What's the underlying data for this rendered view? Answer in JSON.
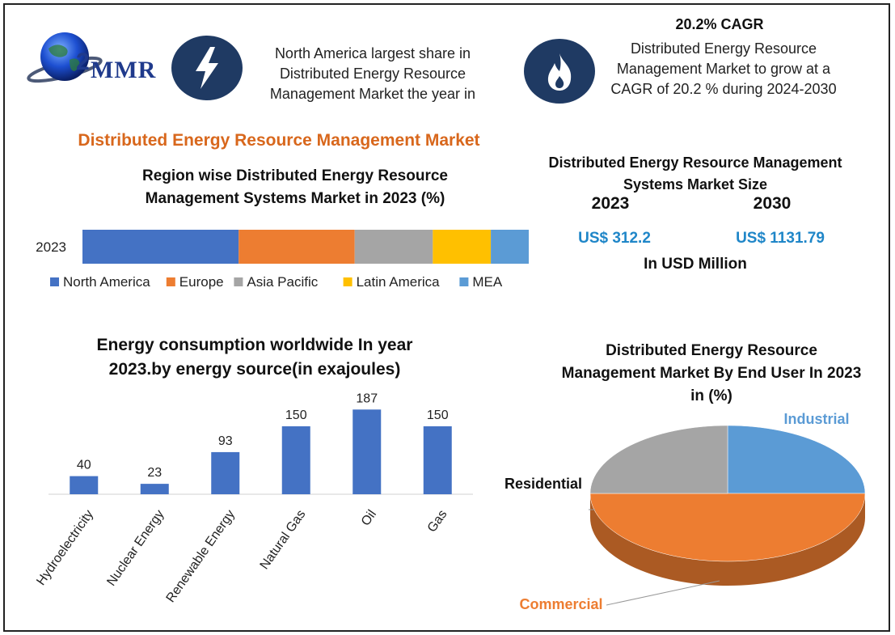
{
  "header": {
    "logo_text": "MMR",
    "na_text": "North America largest share in Distributed Energy Resource Management Market the year in",
    "cagr_title": "20.2% CAGR",
    "cagr_desc": "Distributed Energy Resource Management Market to grow at a CAGR of 20.2 % during 2024-2030",
    "bolt_icon": "lightning-bolt-icon",
    "fire_icon": "flame-icon"
  },
  "main_title": "Distributed Energy Resource Management Market",
  "market_size": {
    "title": "Distributed Energy Resource Management Systems Market Size",
    "year1": "2023",
    "year2": "2030",
    "value1": "US$ 312.2",
    "value2": "US$ 1131.79",
    "units": "In USD Million"
  },
  "colors": {
    "blue": "#4472c4",
    "orange": "#ed7d31",
    "gray": "#a5a5a5",
    "yellow": "#ffc000",
    "light_blue": "#5b9bd5",
    "accent_orange": "#d8671c",
    "value_blue": "#1f86c8"
  },
  "chart_data": [
    {
      "type": "bar",
      "orientation": "horizontal",
      "stacked": true,
      "title": "Region wise Distributed Energy Resource Management Systems  Market in 2023 (%)",
      "categories": [
        "2023"
      ],
      "series": [
        {
          "name": "North America",
          "values": [
            35
          ],
          "color": "#4472c4"
        },
        {
          "name": "Europe",
          "values": [
            26
          ],
          "color": "#ed7d31"
        },
        {
          "name": "Asia Pacific",
          "values": [
            17.5
          ],
          "color": "#a5a5a5"
        },
        {
          "name": "Latin America",
          "values": [
            13
          ],
          "color": "#ffc000"
        },
        {
          "name": "MEA",
          "values": [
            8.5
          ],
          "color": "#5b9bd5"
        }
      ],
      "legend": "bottom",
      "grid": false
    },
    {
      "type": "bar",
      "title": "Energy consumption worldwide In year 2023.by energy source(in exajoules)",
      "categories": [
        "Hydroelectricity",
        "Nuclear Energy",
        "Renewable Energy",
        "Natural Gas",
        "Oil",
        "Gas"
      ],
      "values": [
        40,
        23,
        93,
        150,
        187,
        150
      ],
      "data_labels": [
        "40",
        "23",
        "93",
        "150",
        "187",
        "150"
      ],
      "color": "#4472c4",
      "ylim": [
        0,
        200
      ],
      "grid": false
    },
    {
      "type": "pie",
      "style": "3d",
      "title": "Distributed Energy Resource Management Market By End User In 2023 in (%)",
      "categories": [
        "Industrial",
        "Commercial",
        "Residential"
      ],
      "values": [
        25,
        50,
        25
      ],
      "colors": [
        "#5b9bd5",
        "#ed7d31",
        "#a5a5a5"
      ],
      "label_colors": [
        "#5b9bd5",
        "#ed7d31",
        "#111111"
      ]
    }
  ]
}
